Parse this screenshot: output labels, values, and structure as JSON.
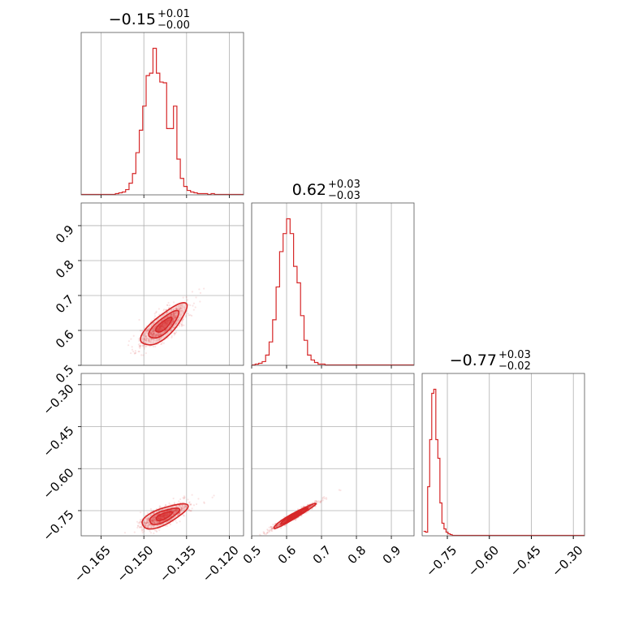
{
  "chart_data": {
    "type": "corner",
    "color": "#d62728",
    "params": [
      {
        "title": {
          "value": "−0.15",
          "plus": "+0.01",
          "minus": "−0.00"
        },
        "range": [
          -0.172,
          -0.115
        ],
        "ticks": [
          -0.165,
          -0.15,
          -0.135,
          -0.12
        ],
        "tick_labels": [
          "−0.165",
          "−0.150",
          "−0.135",
          "−0.120"
        ],
        "histogram": {
          "edges_start": -0.172,
          "bin_width": 0.0012,
          "counts": [
            0,
            0,
            0,
            0,
            0,
            0,
            0,
            0,
            0,
            0,
            1,
            2,
            3,
            6,
            14,
            26,
            52,
            80,
            110,
            148,
            151,
            182,
            151,
            140,
            139,
            82,
            82,
            110,
            44,
            20,
            10,
            5,
            3,
            2,
            1,
            1,
            1,
            0,
            1,
            0,
            0,
            0,
            0,
            0,
            0,
            0,
            0,
            0
          ]
        }
      },
      {
        "title": {
          "value": "0.62",
          "plus": "+0.03",
          "minus": "−0.03"
        },
        "range": [
          0.5,
          0.965
        ],
        "ticks": [
          0.5,
          0.6,
          0.7,
          0.8,
          0.9
        ],
        "tick_labels": [
          "0.5",
          "0.6",
          "0.7",
          "0.8",
          "0.9"
        ],
        "histogram": {
          "edges_start": 0.5,
          "bin_width": 0.01,
          "counts": [
            0,
            1,
            2,
            4,
            12,
            28,
            55,
            95,
            138,
            160,
            178,
            160,
            120,
            100,
            60,
            30,
            12,
            6,
            3,
            1,
            1,
            0,
            0,
            0,
            0,
            0,
            0,
            0,
            0,
            0,
            0,
            0,
            0,
            0,
            0,
            0,
            0,
            0,
            0,
            0,
            0,
            0,
            0,
            0,
            0,
            0,
            0
          ]
        }
      },
      {
        "title": {
          "value": "−0.77",
          "plus": "+0.03",
          "minus": "−0.02"
        },
        "range": [
          -0.84,
          -0.26
        ],
        "ticks": [
          -0.75,
          -0.6,
          -0.45,
          -0.3
        ],
        "tick_labels": [
          "−0.75",
          "−0.60",
          "−0.45",
          "−0.30"
        ],
        "histogram": {
          "edges_start": -0.835,
          "bin_width": 0.0073,
          "counts": [
            5,
            4,
            60,
            118,
            175,
            180,
            118,
            95,
            40,
            15,
            8,
            4,
            2,
            1,
            0,
            0,
            0,
            0,
            0,
            0,
            0,
            0,
            0,
            0,
            0,
            0,
            0,
            0,
            0,
            0,
            0,
            0,
            0,
            0,
            0,
            0,
            0,
            0,
            0,
            0,
            0,
            0,
            0,
            0,
            0,
            0,
            0,
            0,
            0,
            0,
            0,
            0,
            0,
            0,
            0,
            0,
            0,
            0,
            0,
            0,
            0,
            0,
            0,
            0,
            0,
            0,
            0,
            0,
            0,
            0,
            0,
            0,
            0,
            0,
            0,
            0,
            0,
            0,
            0,
            0
          ]
        }
      }
    ],
    "ylim_2d": {
      "1": [
        0.5,
        0.965
      ],
      "2": [
        -0.84,
        -0.26
      ]
    },
    "yticks_2d": {
      "1": {
        "ticks": [
          0.5,
          0.6,
          0.7,
          0.8,
          0.9
        ],
        "labels": [
          "0.5",
          "0.6",
          "0.7",
          "0.8",
          "0.9"
        ]
      },
      "2": {
        "ticks": [
          -0.75,
          -0.6,
          -0.45,
          -0.3
        ],
        "labels": [
          "−0.75",
          "−0.60",
          "−0.45",
          "−0.30"
        ]
      }
    },
    "grid": true
  }
}
